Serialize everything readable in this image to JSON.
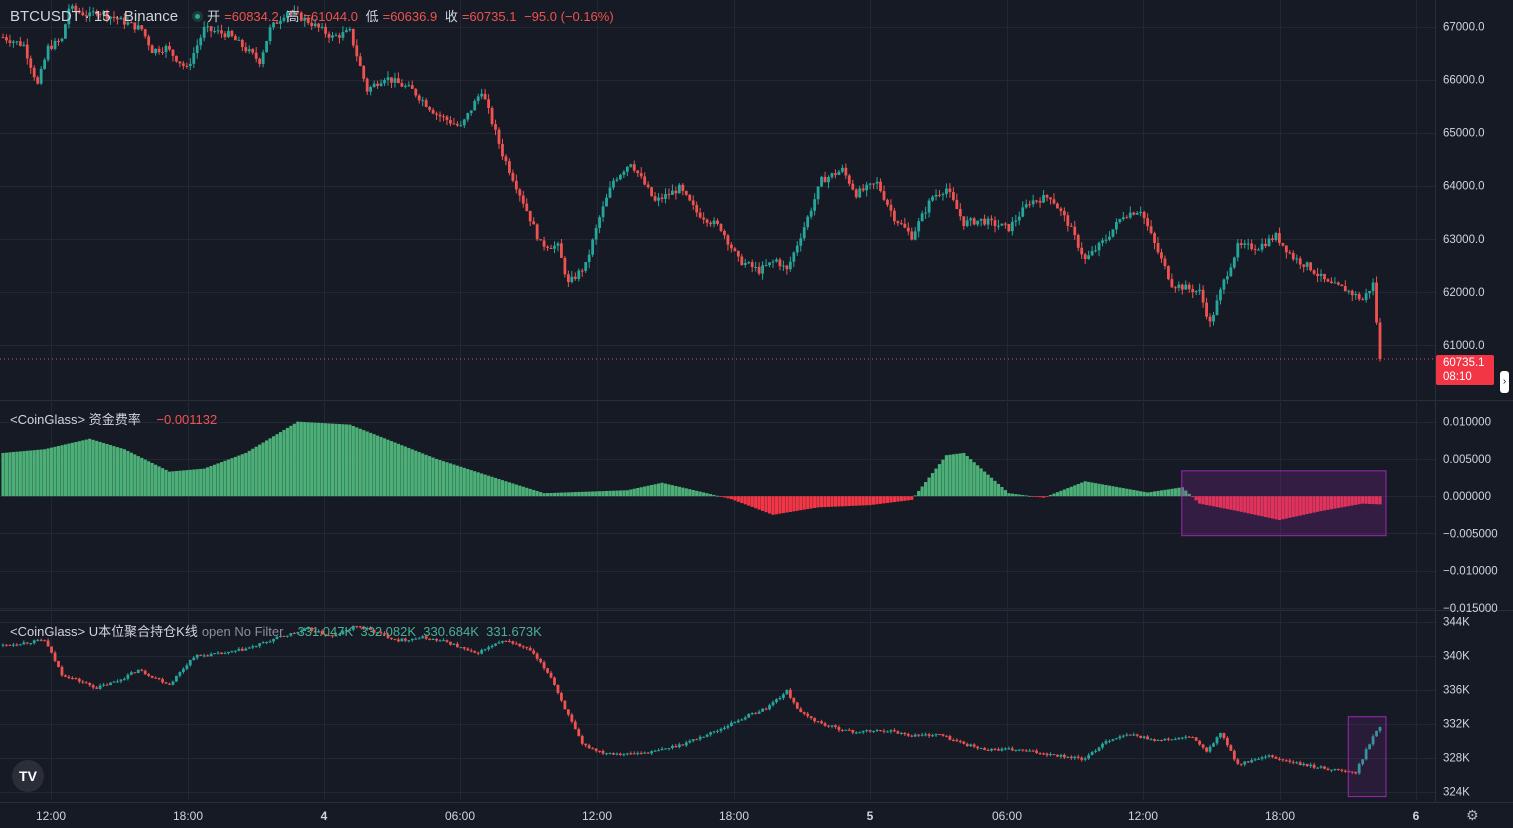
{
  "header": {
    "symbol": "BTCUSDT · 15 · Binance",
    "ohlc": [
      {
        "key": "开",
        "value": "=60834.2"
      },
      {
        "key": "高",
        "value": "=61044.0"
      },
      {
        "key": "低",
        "value": "=60636.9"
      },
      {
        "key": "收",
        "value": "=60735.1"
      }
    ],
    "change": "−95.0 (−0.16%)"
  },
  "price_tag": {
    "price": "60735.1",
    "countdown": "08:10"
  },
  "funding": {
    "title": "<CoinGlass> 资金费率",
    "value": "−0.001132"
  },
  "oi": {
    "title": "<CoinGlass> U本位聚合持仓K线",
    "filter": "open No Filter",
    "values": "331.047K  332.082K  330.684K  331.673K"
  },
  "logo": "TV",
  "colors": {
    "up": "#26a69a",
    "down": "#ef5350",
    "fr_up": "#4caf78",
    "fr_down": "#f23645",
    "highlight": "#9c27b0",
    "bg": "#161a25",
    "grid": "#232733"
  },
  "chart_data": [
    {
      "type": "candlestick",
      "title": "BTCUSDT · 15 · Binance",
      "ylim": [
        60000,
        67500
      ],
      "y_ticks": [
        "67000.0",
        "66000.0",
        "65000.0",
        "64000.0",
        "63000.0",
        "62000.0",
        "61000.0"
      ],
      "x_ticks": [
        "12:00",
        "18:00",
        "4",
        "06:00",
        "12:00",
        "18:00",
        "5",
        "06:00",
        "12:00",
        "18:00",
        "6"
      ],
      "last": 60735.1,
      "path": [
        [
          0,
          66800
        ],
        [
          6,
          66650
        ],
        [
          10,
          65900
        ],
        [
          13,
          66600
        ],
        [
          17,
          66750
        ],
        [
          19,
          67350
        ],
        [
          25,
          67200
        ],
        [
          27,
          67300
        ],
        [
          40,
          66950
        ],
        [
          43,
          66550
        ],
        [
          47,
          66600
        ],
        [
          53,
          66200
        ],
        [
          58,
          66950
        ],
        [
          65,
          66850
        ],
        [
          74,
          66350
        ],
        [
          77,
          66950
        ],
        [
          82,
          67300
        ],
        [
          88,
          67100
        ],
        [
          95,
          66800
        ],
        [
          100,
          66900
        ],
        [
          105,
          65800
        ],
        [
          110,
          66050
        ],
        [
          118,
          65800
        ],
        [
          125,
          65350
        ],
        [
          132,
          65100
        ],
        [
          138,
          65800
        ],
        [
          144,
          64600
        ],
        [
          150,
          63700
        ],
        [
          155,
          62900
        ],
        [
          160,
          62850
        ],
        [
          163,
          62150
        ],
        [
          168,
          62500
        ],
        [
          172,
          63400
        ],
        [
          176,
          64100
        ],
        [
          181,
          64450
        ],
        [
          188,
          63700
        ],
        [
          195,
          63950
        ],
        [
          200,
          63500
        ],
        [
          207,
          63200
        ],
        [
          212,
          62600
        ],
        [
          218,
          62400
        ],
        [
          223,
          62600
        ],
        [
          226,
          62400
        ],
        [
          232,
          63400
        ],
        [
          236,
          64100
        ],
        [
          242,
          64300
        ],
        [
          246,
          63850
        ],
        [
          252,
          64050
        ],
        [
          257,
          63400
        ],
        [
          262,
          63050
        ],
        [
          268,
          63800
        ],
        [
          272,
          63950
        ],
        [
          277,
          63300
        ],
        [
          282,
          63350
        ],
        [
          290,
          63200
        ],
        [
          296,
          63700
        ],
        [
          302,
          63800
        ],
        [
          307,
          63300
        ],
        [
          312,
          62600
        ],
        [
          318,
          63000
        ],
        [
          323,
          63450
        ],
        [
          328,
          63550
        ],
        [
          332,
          62900
        ],
        [
          337,
          62150
        ],
        [
          345,
          62000
        ],
        [
          348,
          61400
        ],
        [
          352,
          62200
        ],
        [
          356,
          62850
        ],
        [
          362,
          62850
        ],
        [
          367,
          63050
        ],
        [
          372,
          62650
        ],
        [
          377,
          62450
        ],
        [
          382,
          62150
        ],
        [
          387,
          62050
        ],
        [
          392,
          61850
        ],
        [
          395,
          62150
        ],
        [
          397,
          60735
        ]
      ]
    },
    {
      "type": "bar",
      "title": "<CoinGlass> 资金费率",
      "ylim": [
        -0.015,
        0.0125
      ],
      "y_ticks": [
        "0.010000",
        "0.005000",
        "0.000000",
        "−0.005000",
        "−0.010000",
        "−0.015000"
      ],
      "path": [
        [
          0,
          0.0058
        ],
        [
          12,
          0.0063
        ],
        [
          25,
          0.0077
        ],
        [
          35,
          0.0063
        ],
        [
          48,
          0.0033
        ],
        [
          58,
          0.0037
        ],
        [
          70,
          0.0058
        ],
        [
          85,
          0.01
        ],
        [
          100,
          0.0096
        ],
        [
          125,
          0.005
        ],
        [
          145,
          0.002
        ],
        [
          156,
          0.0004
        ],
        [
          180,
          0.0008
        ],
        [
          190,
          0.0018
        ],
        [
          203,
          0.0004
        ],
        [
          210,
          -0.0004
        ],
        [
          222,
          -0.0025
        ],
        [
          235,
          -0.0015
        ],
        [
          250,
          -0.0012
        ],
        [
          262,
          -0.0005
        ],
        [
          272,
          0.0055
        ],
        [
          277,
          0.0058
        ],
        [
          290,
          0.0004
        ],
        [
          300,
          -0.0002
        ],
        [
          312,
          0.002
        ],
        [
          330,
          0.0005
        ],
        [
          340,
          0.0012
        ],
        [
          345,
          -0.001
        ],
        [
          356,
          -0.002
        ],
        [
          368,
          -0.0032
        ],
        [
          380,
          -0.002
        ],
        [
          392,
          -0.001
        ],
        [
          397,
          -0.0011
        ]
      ],
      "highlight": {
        "from": 341,
        "to": 397
      }
    },
    {
      "type": "candlestick",
      "title": "<CoinGlass> U本位聚合持仓K线",
      "ylim": [
        323000,
        345000
      ],
      "y_ticks": [
        "344K",
        "340K",
        "336K",
        "332K",
        "328K",
        "324K"
      ],
      "path": [
        [
          0,
          341200
        ],
        [
          12,
          341800
        ],
        [
          17,
          337800
        ],
        [
          27,
          336200
        ],
        [
          33,
          337000
        ],
        [
          39,
          338300
        ],
        [
          48,
          336600
        ],
        [
          55,
          339900
        ],
        [
          65,
          340300
        ],
        [
          72,
          341000
        ],
        [
          80,
          342200
        ],
        [
          88,
          343100
        ],
        [
          95,
          342200
        ],
        [
          102,
          343500
        ],
        [
          114,
          341800
        ],
        [
          121,
          342100
        ],
        [
          128,
          341600
        ],
        [
          136,
          340200
        ],
        [
          145,
          341800
        ],
        [
          152,
          340600
        ],
        [
          158,
          337500
        ],
        [
          162,
          333800
        ],
        [
          167,
          329500
        ],
        [
          173,
          328600
        ],
        [
          180,
          328400
        ],
        [
          188,
          328700
        ],
        [
          196,
          329600
        ],
        [
          206,
          331200
        ],
        [
          214,
          332800
        ],
        [
          220,
          333800
        ],
        [
          226,
          335800
        ],
        [
          230,
          333200
        ],
        [
          237,
          331800
        ],
        [
          245,
          331000
        ],
        [
          255,
          331200
        ],
        [
          262,
          330600
        ],
        [
          270,
          330700
        ],
        [
          275,
          329900
        ],
        [
          282,
          329000
        ],
        [
          292,
          328900
        ],
        [
          300,
          328500
        ],
        [
          312,
          327800
        ],
        [
          318,
          330000
        ],
        [
          325,
          330700
        ],
        [
          333,
          330000
        ],
        [
          343,
          330400
        ],
        [
          347,
          328600
        ],
        [
          351,
          330900
        ],
        [
          356,
          327200
        ],
        [
          365,
          328100
        ],
        [
          375,
          327100
        ],
        [
          390,
          326200
        ],
        [
          394,
          329700
        ],
        [
          397,
          331700
        ]
      ],
      "highlight": {
        "from": 389,
        "to": 397
      }
    }
  ]
}
